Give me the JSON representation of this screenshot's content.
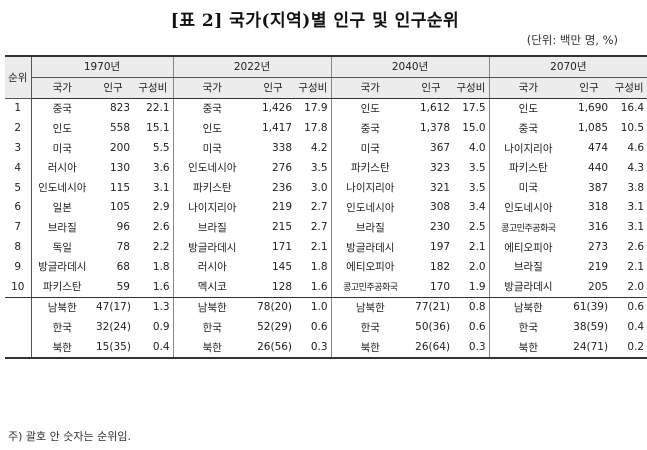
{
  "title": "[표 2] 국가(지역)별 인구 및 인구순위",
  "unit": "(단위: 백만 명, %)",
  "header": {
    "rank": "순위",
    "years": [
      "1970년",
      "2022년",
      "2040년",
      "2070년"
    ],
    "sub": [
      "국가",
      "인구",
      "구성비"
    ]
  },
  "rows": [
    {
      "rank": "1",
      "c": [
        [
          "중국",
          "823",
          "22.1"
        ],
        [
          "중국",
          "1,426",
          "17.9"
        ],
        [
          "인도",
          "1,612",
          "17.5"
        ],
        [
          "인도",
          "1,690",
          "16.4"
        ]
      ]
    },
    {
      "rank": "2",
      "c": [
        [
          "인도",
          "558",
          "15.1"
        ],
        [
          "인도",
          "1,417",
          "17.8"
        ],
        [
          "중국",
          "1,378",
          "15.0"
        ],
        [
          "중국",
          "1,085",
          "10.5"
        ]
      ]
    },
    {
      "rank": "3",
      "c": [
        [
          "미국",
          "200",
          "5.5"
        ],
        [
          "미국",
          "338",
          "4.2"
        ],
        [
          "미국",
          "367",
          "4.0"
        ],
        [
          "나이지리아",
          "474",
          "4.6"
        ]
      ]
    },
    {
      "rank": "4",
      "c": [
        [
          "러시아",
          "130",
          "3.6"
        ],
        [
          "인도네시아",
          "276",
          "3.5"
        ],
        [
          "파키스탄",
          "323",
          "3.5"
        ],
        [
          "파키스탄",
          "440",
          "4.3"
        ]
      ]
    },
    {
      "rank": "5",
      "c": [
        [
          "인도네시아",
          "115",
          "3.1"
        ],
        [
          "파키스탄",
          "236",
          "3.0"
        ],
        [
          "나이지리아",
          "321",
          "3.5"
        ],
        [
          "미국",
          "387",
          "3.8"
        ]
      ]
    },
    {
      "rank": "6",
      "c": [
        [
          "일본",
          "105",
          "2.9"
        ],
        [
          "나이지리아",
          "219",
          "2.7"
        ],
        [
          "인도네시아",
          "308",
          "3.4"
        ],
        [
          "인도네시아",
          "318",
          "3.1"
        ]
      ]
    },
    {
      "rank": "7",
      "c": [
        [
          "브라질",
          "96",
          "2.6"
        ],
        [
          "브라질",
          "215",
          "2.7"
        ],
        [
          "브라질",
          "230",
          "2.5"
        ],
        [
          "콩고민주공화국",
          "316",
          "3.1"
        ]
      ]
    },
    {
      "rank": "8",
      "c": [
        [
          "독일",
          "78",
          "2.2"
        ],
        [
          "방글라데시",
          "171",
          "2.1"
        ],
        [
          "방글라데시",
          "197",
          "2.1"
        ],
        [
          "에티오피아",
          "273",
          "2.6"
        ]
      ]
    },
    {
      "rank": "9",
      "c": [
        [
          "방글라데시",
          "68",
          "1.8"
        ],
        [
          "러시아",
          "145",
          "1.8"
        ],
        [
          "에티오피아",
          "182",
          "2.0"
        ],
        [
          "브라질",
          "219",
          "2.1"
        ]
      ]
    },
    {
      "rank": "10",
      "c": [
        [
          "파키스탄",
          "59",
          "1.6"
        ],
        [
          "멕시코",
          "128",
          "1.6"
        ],
        [
          "콩고민주공화국",
          "170",
          "1.9"
        ],
        [
          "방글라데시",
          "205",
          "2.0"
        ]
      ]
    }
  ],
  "korea_rows": [
    {
      "c": [
        [
          "남북한",
          "47(17)",
          "1.3"
        ],
        [
          "남북한",
          "78(20)",
          "1.0"
        ],
        [
          "남북한",
          "77(21)",
          "0.8"
        ],
        [
          "남북한",
          "61(39)",
          "0.6"
        ]
      ]
    },
    {
      "c": [
        [
          "한국",
          "32(24)",
          "0.9"
        ],
        [
          "한국",
          "52(29)",
          "0.6"
        ],
        [
          "한국",
          "50(36)",
          "0.6"
        ],
        [
          "한국",
          "38(59)",
          "0.4"
        ]
      ]
    },
    {
      "c": [
        [
          "북한",
          "15(35)",
          "0.4"
        ],
        [
          "북한",
          "26(56)",
          "0.3"
        ],
        [
          "북한",
          "26(64)",
          "0.3"
        ],
        [
          "북한",
          "24(71)",
          "0.2"
        ]
      ]
    }
  ],
  "note": "주) 괄호 안 숫자는 순위임."
}
